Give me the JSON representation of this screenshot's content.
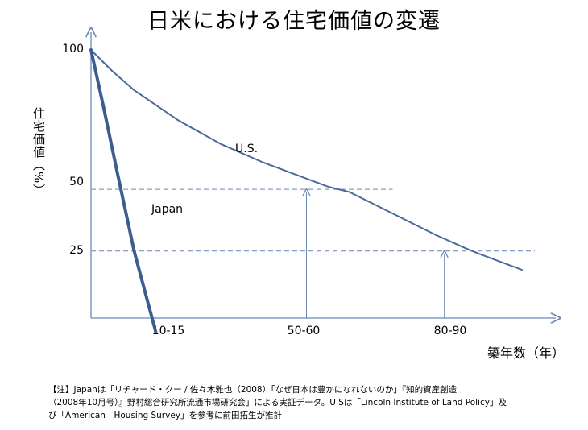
{
  "title": "日米における住宅価値の変遷",
  "chart_data": {
    "type": "line",
    "title": "日米における住宅価値の変遷",
    "ylabel": "住宅価値（%）",
    "xlabel": "築年数（年）",
    "y_ticks": [
      "100",
      "50",
      "25"
    ],
    "x_ticks": [
      "10-15",
      "50-60",
      "80-90"
    ],
    "series": [
      {
        "name": "U.S.",
        "color": "#4a6a9c",
        "points": [
          [
            0,
            100
          ],
          [
            5,
            92
          ],
          [
            10,
            85
          ],
          [
            20,
            74
          ],
          [
            30,
            65
          ],
          [
            40,
            58
          ],
          [
            50,
            52
          ],
          [
            55,
            49
          ],
          [
            60,
            47
          ],
          [
            70,
            39
          ],
          [
            80,
            31
          ],
          [
            87,
            26
          ],
          [
            90,
            24
          ],
          [
            100,
            18
          ]
        ]
      },
      {
        "name": "Japan",
        "color": "#3c5e8f",
        "points": [
          [
            0,
            100
          ],
          [
            3,
            78
          ],
          [
            6,
            55
          ],
          [
            10,
            25
          ],
          [
            15,
            -5
          ]
        ]
      }
    ],
    "reference_lines": [
      {
        "y": 48,
        "x_end": 70
      },
      {
        "y": 25,
        "x_end": 103
      }
    ],
    "arrows": [
      {
        "x": 50,
        "y": 48
      },
      {
        "x": 82,
        "y": 25
      }
    ]
  },
  "note": "【注】Japanは「リチャード・クー / 佐々木雅也（2008）「なぜ日本は豊かになれないのか」『知的資産創造\n（2008年10月号）』野村総合研究所流通市場研究会」による実証データ。U.Sは「Lincoln Institute of Land Policy」及\nび「American　Housing Survey」を参考に前田拓生が推計"
}
